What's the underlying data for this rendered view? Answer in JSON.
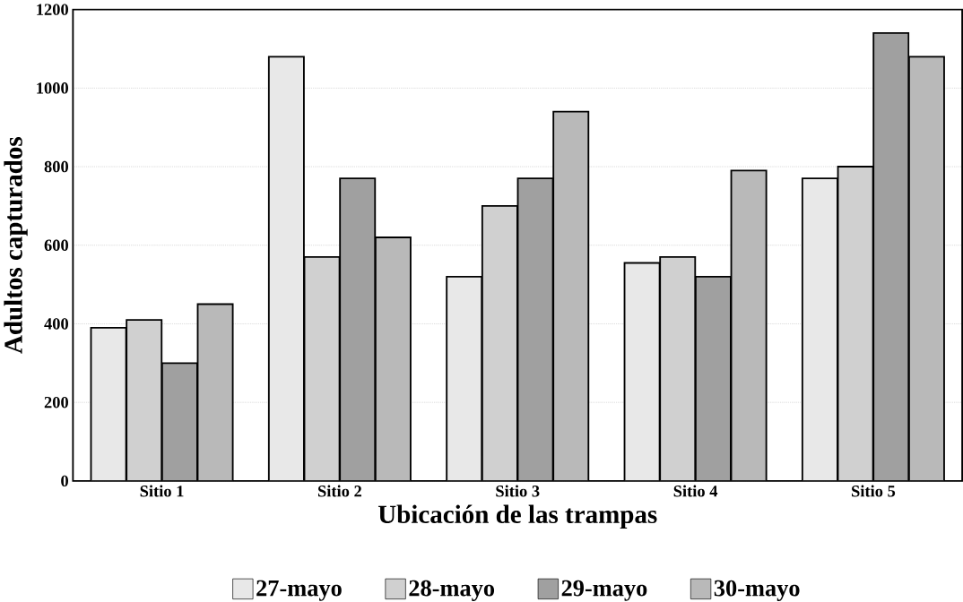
{
  "chart_data": {
    "type": "bar",
    "xlabel": "Ubicación de las trampas",
    "ylabel": "Adultos capturados",
    "categories": [
      "Sitio 1",
      "Sitio 2",
      "Sitio 3",
      "Sitio 4",
      "Sitio 5"
    ],
    "series": [
      {
        "name": "27-mayo",
        "color": "#e8e8e8",
        "values": [
          390,
          1080,
          520,
          555,
          770
        ]
      },
      {
        "name": "28-mayo",
        "color": "#d0d0d0",
        "values": [
          410,
          570,
          700,
          570,
          800
        ]
      },
      {
        "name": "29-mayo",
        "color": "#a0a0a0",
        "values": [
          300,
          770,
          770,
          520,
          1140
        ]
      },
      {
        "name": "30-mayo",
        "color": "#b9b9b9",
        "values": [
          450,
          620,
          940,
          790,
          1080
        ]
      }
    ],
    "ylim": [
      0,
      1200
    ],
    "yticks": [
      0,
      200,
      400,
      600,
      800,
      1000,
      1200
    ],
    "grid": "y",
    "legend": "bottom"
  }
}
